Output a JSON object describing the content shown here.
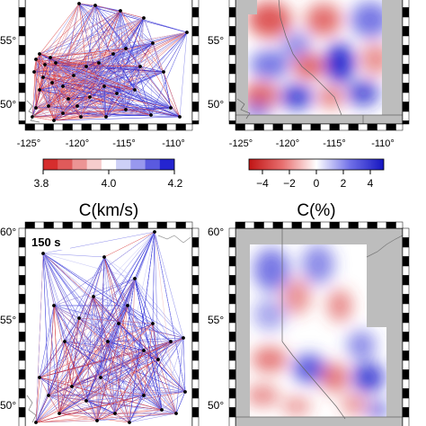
{
  "panels": {
    "top_left": {
      "lat_labels": [
        "55°",
        "50°"
      ],
      "lon_labels": [
        "-125°",
        "-120°",
        "-115°",
        "-110°"
      ],
      "period_label": ""
    },
    "top_right": {
      "lat_labels": [
        "55°",
        "50°"
      ],
      "lon_labels": [
        "-125°",
        "-120°",
        "-115°",
        "-110°"
      ]
    },
    "bottom_left": {
      "lat_labels": [
        "60°",
        "55°",
        "50°"
      ],
      "period_label": "150 s"
    },
    "bottom_right": {
      "lat_labels": [
        "60°",
        "55°",
        "50°"
      ]
    }
  },
  "colorbars": {
    "velocity": {
      "title": "C(km/s)",
      "tick_labels": [
        "3.8",
        "4.0",
        "4.2"
      ],
      "range": [
        3.8,
        4.2
      ],
      "colors": [
        "#d62d2d",
        "#e05a5a",
        "#ec9494",
        "#f6cccc",
        "#ffffff",
        "#cdd0f6",
        "#9898ee",
        "#5a5ae0",
        "#2424d0"
      ]
    },
    "perturbation": {
      "title": "C(%)",
      "tick_labels": [
        "−4",
        "−2",
        "0",
        "2",
        "4"
      ],
      "range": [
        -5,
        5
      ],
      "colors": [
        "#cc1a1a",
        "#e56b6b",
        "#f6c6c6",
        "#ffffff",
        "#c8c8f6",
        "#6b6be5",
        "#1a1acc"
      ]
    }
  },
  "colors": {
    "slow": "#d62d2d",
    "fast": "#2a2ad6",
    "land_mask": "#bdbdbd",
    "station": "#000000"
  }
}
